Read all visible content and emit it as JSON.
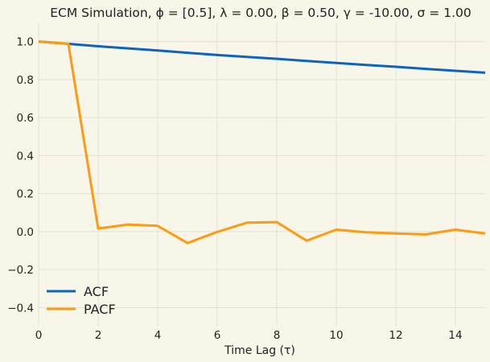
{
  "chart_data": {
    "type": "line",
    "title": "ECM Simulation, ϕ = [0.5], λ = 0.00, β = 0.50, γ = -10.00, σ = 1.00",
    "xlabel": "Time Lag (τ)",
    "ylabel": "",
    "xlim": [
      0,
      15
    ],
    "ylim": [
      -0.5,
      1.1
    ],
    "xticks": [
      0,
      2,
      4,
      6,
      8,
      10,
      12,
      14
    ],
    "xtick_labels": [
      "0",
      "2",
      "4",
      "6",
      "8",
      "10",
      "12",
      "14"
    ],
    "yticks": [
      -0.4,
      -0.2,
      0.0,
      0.2,
      0.4,
      0.6,
      0.8,
      1.0
    ],
    "ytick_labels": [
      "−0.4",
      "−0.2",
      "0.0",
      "0.2",
      "0.4",
      "0.6",
      "0.8",
      "1.0"
    ],
    "grid": true,
    "legend_position": "bottom-left",
    "x": [
      0,
      1,
      2,
      3,
      4,
      5,
      6,
      7,
      8,
      9,
      10,
      11,
      12,
      13,
      14,
      15
    ],
    "series": [
      {
        "name": "ACF",
        "color": "#0c64bd",
        "values": [
          1.0,
          0.988,
          0.975,
          0.964,
          0.953,
          0.941,
          0.929,
          0.919,
          0.909,
          0.898,
          0.887,
          0.877,
          0.867,
          0.856,
          0.846,
          0.836
        ]
      },
      {
        "name": "PACF",
        "color": "#fd9b12",
        "values": [
          1.0,
          0.988,
          0.016,
          0.037,
          0.03,
          -0.06,
          -0.002,
          0.047,
          0.05,
          -0.048,
          0.01,
          -0.004,
          -0.01,
          -0.015,
          0.01,
          -0.01
        ]
      }
    ]
  }
}
